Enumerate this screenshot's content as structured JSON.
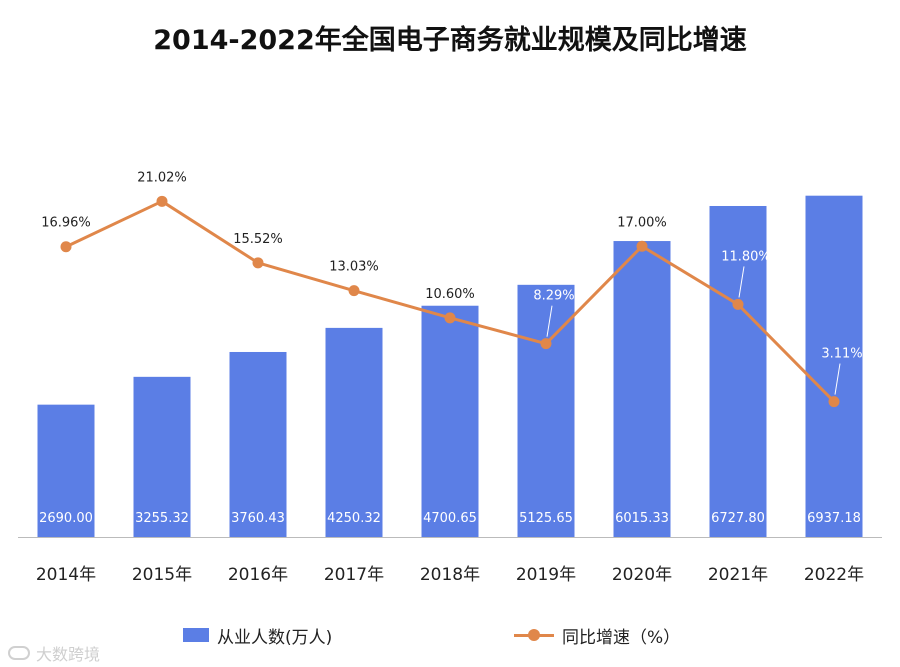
{
  "colors": {
    "bar": "#5b7ee5",
    "line": "#e0874a",
    "axis": "#bbbbbb",
    "text": "#222222",
    "bar_label": "#ffffff"
  },
  "watermark": {
    "text": "大数跨境"
  },
  "chart_data": {
    "type": "bar",
    "title": "2014-2022年全国电子商务就业规模及同比增速",
    "categories": [
      "2014年",
      "2015年",
      "2016年",
      "2017年",
      "2018年",
      "2019年",
      "2020年",
      "2021年",
      "2022年"
    ],
    "series": [
      {
        "name": "从业人数(万人)",
        "type": "bar",
        "axis": "left",
        "values": [
          2690.0,
          3255.32,
          3760.43,
          4250.32,
          4700.65,
          5125.65,
          6015.33,
          6727.8,
          6937.18
        ],
        "labels": [
          "2690.00",
          "3255.32",
          "3760.43",
          "4250.32",
          "4700.65",
          "5125.65",
          "6015.33",
          "6727.80",
          "6937.18"
        ]
      },
      {
        "name": "同比增速（%）",
        "type": "line",
        "axis": "right",
        "values": [
          16.96,
          21.02,
          15.52,
          13.03,
          10.6,
          8.29,
          17.0,
          11.8,
          3.11
        ],
        "labels": [
          "16.96%",
          "21.02%",
          "15.52%",
          "13.03%",
          "10.60%",
          "8.29%",
          "17.00%",
          "11.80%",
          "3.11%"
        ]
      }
    ],
    "left_ylim": [
      0,
      7500
    ],
    "right_ylim": [
      -9,
      24
    ],
    "legend_position": "bottom",
    "grid": false
  }
}
